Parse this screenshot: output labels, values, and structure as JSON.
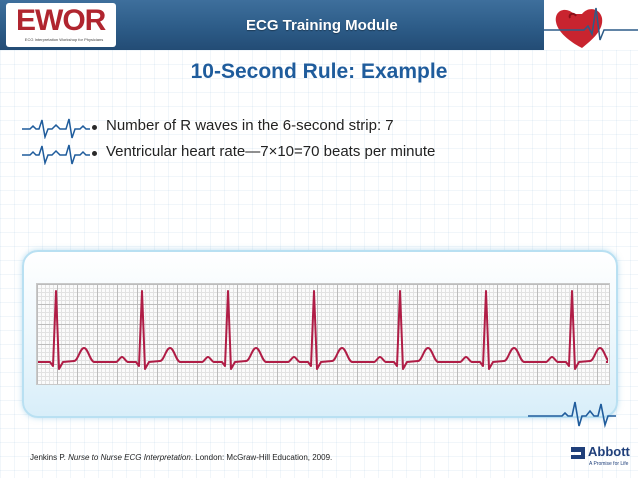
{
  "header": {
    "logo_text": "EWOR",
    "logo_subtitle": "ECG Interpretation Workshop for Physicians",
    "module_title": "ECG Training Module"
  },
  "slide": {
    "title": "10-Second Rule: Example",
    "bullets": [
      {
        "icon": "ecg-waveform-icon",
        "text": "Number of R waves in the 6-second strip: 7"
      },
      {
        "icon": "ecg-waveform-icon",
        "text": "Ventricular heart rate—7×10=70 beats per minute"
      }
    ]
  },
  "ecg_strip": {
    "r_wave_count": 7,
    "strip_duration_seconds": 6,
    "trace_color": "#b01d46"
  },
  "footer": {
    "citation_author": "Jenkins P. ",
    "citation_title": "Nurse to Nurse ECG Interpretation",
    "citation_rest": ". London: McGraw-Hill Education, 2009."
  },
  "branding": {
    "company": "Abbott",
    "tagline": "A Promise for Life",
    "brand_color": "#1f3f7a",
    "accent_blue": "#1f5c9c",
    "logo_red": "#b0252f"
  }
}
